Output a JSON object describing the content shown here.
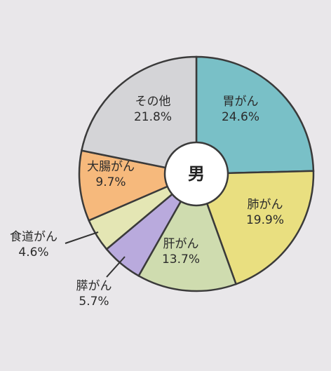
{
  "chart_data": {
    "type": "pie",
    "donut": true,
    "center_label": "男",
    "slices": [
      {
        "name": "胃がん",
        "value": 24.6,
        "value_label": "24.6%",
        "color": "#79c0c7"
      },
      {
        "name": "肺がん",
        "value": 19.9,
        "value_label": "19.9%",
        "color": "#e9df80"
      },
      {
        "name": "肝がん",
        "value": 13.7,
        "value_label": "13.7%",
        "color": "#cfdcaf"
      },
      {
        "name": "膵がん",
        "value": 5.7,
        "value_label": "5.7%",
        "color": "#b9aadd"
      },
      {
        "name": "食道がん",
        "value": 4.6,
        "value_label": "4.6%",
        "color": "#e4e6b4"
      },
      {
        "name": "大腸がん",
        "value": 9.7,
        "value_label": "9.7%",
        "color": "#f6b97c"
      },
      {
        "name": "その他",
        "value": 21.8,
        "value_label": "21.8%",
        "color": "#d4d4d7"
      }
    ],
    "start_angle_deg": 0,
    "direction": "clockwise"
  }
}
